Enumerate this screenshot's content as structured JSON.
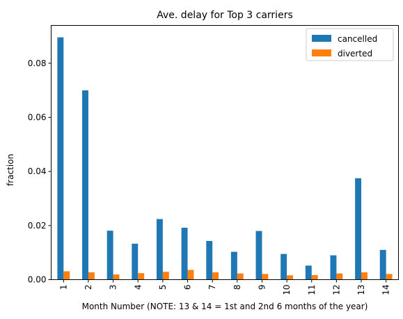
{
  "chart_data": {
    "type": "bar",
    "title": "Ave. delay for Top 3 carriers",
    "xlabel": "Month Number (NOTE: 13 & 14 = 1st and 2nd 6 months of the year)",
    "ylabel": "fraction",
    "categories": [
      "1",
      "2",
      "3",
      "4",
      "5",
      "6",
      "7",
      "8",
      "9",
      "10",
      "11",
      "12",
      "13",
      "14"
    ],
    "series": [
      {
        "name": "cancelled",
        "color": "#1f77b4",
        "values": [
          0.0896,
          0.07,
          0.0181,
          0.0133,
          0.0224,
          0.0192,
          0.0143,
          0.0103,
          0.018,
          0.0095,
          0.0052,
          0.009,
          0.0375,
          0.011
        ]
      },
      {
        "name": "diverted",
        "color": "#ff7f0e",
        "values": [
          0.0031,
          0.0027,
          0.0019,
          0.0024,
          0.0029,
          0.0036,
          0.0027,
          0.0023,
          0.0021,
          0.0016,
          0.0017,
          0.0023,
          0.0027,
          0.0021
        ]
      }
    ],
    "ylim": [
      0,
      0.094
    ],
    "yticks": [
      "0.00",
      "0.02",
      "0.04",
      "0.06",
      "0.08"
    ],
    "ytick_values": [
      0,
      0.02,
      0.04,
      0.06,
      0.08
    ],
    "legend": "top-right",
    "grid": false
  }
}
